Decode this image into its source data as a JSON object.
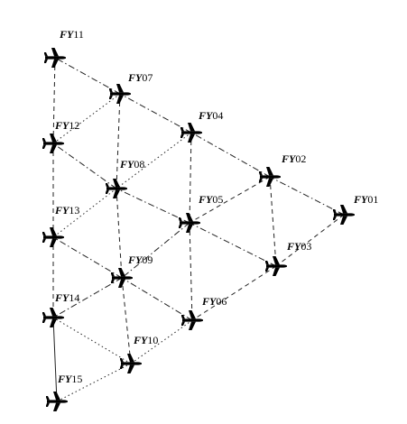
{
  "diagram": {
    "type": "formation",
    "icon": "airplane-icon",
    "nodes": [
      {
        "id": "FY01",
        "prefix": "FY",
        "number": "01"
      },
      {
        "id": "FY02",
        "prefix": "FY",
        "number": "02"
      },
      {
        "id": "FY03",
        "prefix": "FY",
        "number": "03"
      },
      {
        "id": "FY04",
        "prefix": "FY",
        "number": "04"
      },
      {
        "id": "FY05",
        "prefix": "FY",
        "number": "05"
      },
      {
        "id": "FY06",
        "prefix": "FY",
        "number": "06"
      },
      {
        "id": "FY07",
        "prefix": "FY",
        "number": "07"
      },
      {
        "id": "FY08",
        "prefix": "FY",
        "number": "08"
      },
      {
        "id": "FY09",
        "prefix": "FY",
        "number": "09"
      },
      {
        "id": "FY10",
        "prefix": "FY",
        "number": "10"
      },
      {
        "id": "FY11",
        "prefix": "FY",
        "number": "11"
      },
      {
        "id": "FY12",
        "prefix": "FY",
        "number": "12"
      },
      {
        "id": "FY13",
        "prefix": "FY",
        "number": "13"
      },
      {
        "id": "FY14",
        "prefix": "FY",
        "number": "14"
      },
      {
        "id": "FY15",
        "prefix": "FY",
        "number": "15"
      }
    ],
    "edges": [
      {
        "from": "FY01",
        "to": "FY02",
        "style": "dashdot"
      },
      {
        "from": "FY01",
        "to": "FY03",
        "style": "dash"
      },
      {
        "from": "FY02",
        "to": "FY03",
        "style": "dash"
      },
      {
        "from": "FY02",
        "to": "FY04",
        "style": "dashdot"
      },
      {
        "from": "FY02",
        "to": "FY05",
        "style": "dash"
      },
      {
        "from": "FY03",
        "to": "FY05",
        "style": "dashdot"
      },
      {
        "from": "FY03",
        "to": "FY06",
        "style": "dash"
      },
      {
        "from": "FY04",
        "to": "FY07",
        "style": "dashdot"
      },
      {
        "from": "FY04",
        "to": "FY05",
        "style": "dash"
      },
      {
        "from": "FY04",
        "to": "FY08",
        "style": "dot"
      },
      {
        "from": "FY05",
        "to": "FY08",
        "style": "dashdot"
      },
      {
        "from": "FY05",
        "to": "FY06",
        "style": "dash"
      },
      {
        "from": "FY05",
        "to": "FY09",
        "style": "dashdot"
      },
      {
        "from": "FY06",
        "to": "FY09",
        "style": "dashdot"
      },
      {
        "from": "FY06",
        "to": "FY10",
        "style": "dot"
      },
      {
        "from": "FY07",
        "to": "FY11",
        "style": "dashdot"
      },
      {
        "from": "FY07",
        "to": "FY08",
        "style": "dash"
      },
      {
        "from": "FY07",
        "to": "FY12",
        "style": "dot"
      },
      {
        "from": "FY08",
        "to": "FY12",
        "style": "dashdot"
      },
      {
        "from": "FY08",
        "to": "FY09",
        "style": "dash"
      },
      {
        "from": "FY08",
        "to": "FY13",
        "style": "dot"
      },
      {
        "from": "FY09",
        "to": "FY13",
        "style": "dashdot"
      },
      {
        "from": "FY09",
        "to": "FY10",
        "style": "dash"
      },
      {
        "from": "FY09",
        "to": "FY14",
        "style": "dashdot"
      },
      {
        "from": "FY10",
        "to": "FY14",
        "style": "dot"
      },
      {
        "from": "FY10",
        "to": "FY15",
        "style": "dot"
      },
      {
        "from": "FY11",
        "to": "FY12",
        "style": "dash"
      },
      {
        "from": "FY12",
        "to": "FY13",
        "style": "dash"
      },
      {
        "from": "FY13",
        "to": "FY14",
        "style": "dash"
      },
      {
        "from": "FY14",
        "to": "FY15",
        "style": "solid"
      }
    ]
  }
}
